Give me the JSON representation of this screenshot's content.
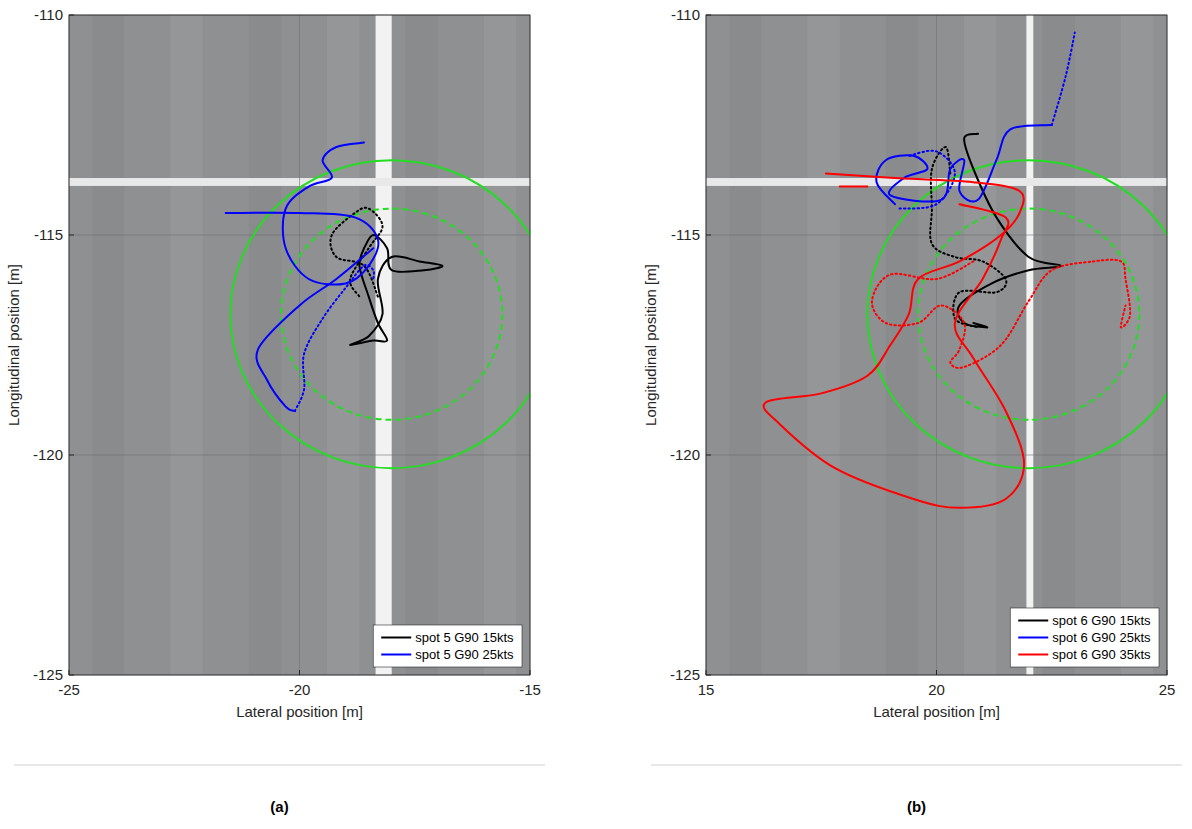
{
  "chart_data": [
    {
      "type": "line",
      "label": "(a)",
      "x_label": "Lateral position [m]",
      "y_label": "Longitudinal position [m]",
      "xlim": [
        -25,
        -15
      ],
      "ylim": [
        -125,
        -110
      ],
      "xticks": [
        -25,
        -20,
        -15
      ],
      "yticks": [
        -125,
        -120,
        -115,
        -110
      ],
      "grid": true,
      "legend": "lower right",
      "circles": [
        {
          "center": [
            -18,
            -116.8
          ],
          "radius": 3.5,
          "color": "#22dd22",
          "line_style": "solid"
        },
        {
          "center": [
            -18,
            -116.8
          ],
          "radius": 2.4,
          "color": "#22dd22",
          "line_style": "dashed"
        }
      ],
      "series": [
        {
          "name": "spot 5 G90 15kts",
          "color": "#000000",
          "segments": [
            {
              "line_style": "solid",
              "x": [
                -18.6,
                -18.4,
                -18.1,
                -18.0,
                -17.3,
                -16.9,
                -17.4,
                -18.0,
                -18.3,
                -18.2,
                -18.5,
                -18.9,
                -18.4,
                -18.1,
                -18.3,
                -18.5,
                -18.7,
                -18.6
              ],
              "y": [
                -115.3,
                -115.0,
                -115.3,
                -115.8,
                -115.8,
                -115.7,
                -115.6,
                -115.5,
                -116.0,
                -116.8,
                -117.3,
                -117.5,
                -117.4,
                -117.4,
                -117.0,
                -116.4,
                -115.7,
                -115.3
              ]
            },
            {
              "line_style": "dotted",
              "x": [
                -18.3,
                -18.6,
                -19.2,
                -19.3,
                -18.8,
                -18.5,
                -18.2,
                -18.5,
                -18.9,
                -18.7
              ],
              "y": [
                -116.4,
                -115.7,
                -115.5,
                -115.0,
                -114.5,
                -114.4,
                -114.8,
                -115.3,
                -116.0,
                -116.4
              ]
            }
          ]
        },
        {
          "name": "spot 5 G90 25kts",
          "color": "#0000ff",
          "segments": [
            {
              "line_style": "solid",
              "x": [
                -18.6,
                -19.2,
                -19.5,
                -19.3,
                -19.8,
                -20.3,
                -20.3,
                -19.8,
                -19.0,
                -18.5,
                -18.3,
                -18.8,
                -20.0,
                -21.6
              ],
              "y": [
                -112.9,
                -113.0,
                -113.3,
                -113.7,
                -113.9,
                -114.4,
                -115.3,
                -116.0,
                -116.1,
                -115.7,
                -115.1,
                -114.6,
                -114.5,
                -114.5
              ]
            },
            {
              "line_style": "solid",
              "x": [
                -18.4,
                -19.2,
                -20.0,
                -20.9,
                -20.7,
                -20.3,
                -20.1
              ],
              "y": [
                -115.3,
                -116.0,
                -116.6,
                -117.6,
                -118.3,
                -118.9,
                -119.0
              ]
            },
            {
              "line_style": "dotted",
              "x": [
                -20.1,
                -19.9,
                -19.9,
                -19.5,
                -19.0,
                -18.6,
                -18.4,
                -18.4
              ],
              "y": [
                -119.0,
                -118.5,
                -117.7,
                -116.9,
                -116.2,
                -115.7,
                -115.8,
                -116.0
              ]
            }
          ]
        }
      ]
    },
    {
      "type": "line",
      "label": "(b)",
      "x_label": "Lateral position [m]",
      "y_label": "Longitudinal position [m]",
      "xlim": [
        15,
        25
      ],
      "ylim": [
        -125,
        -110
      ],
      "xticks": [
        15,
        20,
        25
      ],
      "yticks": [
        -125,
        -120,
        -115,
        -110
      ],
      "grid": true,
      "legend": "lower right",
      "circles": [
        {
          "center": [
            22,
            -116.8
          ],
          "radius": 3.5,
          "color": "#22dd22",
          "line_style": "solid"
        },
        {
          "center": [
            22,
            -116.8
          ],
          "radius": 2.4,
          "color": "#22dd22",
          "line_style": "dashed"
        }
      ],
      "series": [
        {
          "name": "spot 6 G90 15kts",
          "color": "#000000",
          "segments": [
            {
              "line_style": "solid",
              "x": [
                20.9,
                20.6,
                20.8,
                21.3,
                22.0,
                22.7,
                22.0,
                21.2,
                20.5,
                20.6,
                21.1,
                20.8
              ],
              "y": [
                -112.7,
                -112.8,
                -113.5,
                -114.6,
                -115.5,
                -115.7,
                -115.8,
                -116.1,
                -116.6,
                -117.0,
                -117.1,
                -117.0
              ]
            },
            {
              "line_style": "dotted",
              "x": [
                20.3,
                20.2,
                19.9,
                19.9,
                19.9,
                20.4,
                21.0,
                21.5,
                21.3,
                20.5,
                20.4,
                20.9
              ],
              "y": [
                -113.6,
                -113.0,
                -113.5,
                -114.4,
                -115.2,
                -115.5,
                -115.6,
                -116.0,
                -116.3,
                -116.3,
                -116.9,
                -117.1
              ]
            }
          ]
        },
        {
          "name": "spot 6 G90 25kts",
          "color": "#0000ff",
          "segments": [
            {
              "line_style": "solid",
              "x": [
                19.1,
                18.7,
                18.9,
                19.5,
                19.8,
                19.3,
                19.0,
                20.1,
                20.3,
                20.6,
                20.5,
                20.9,
                21.3,
                21.6,
                22.5
              ],
              "y": [
                -114.3,
                -113.8,
                -113.3,
                -113.2,
                -113.5,
                -113.7,
                -114.1,
                -114.2,
                -113.5,
                -113.3,
                -114.0,
                -114.2,
                -113.3,
                -112.6,
                -112.5
              ]
            },
            {
              "line_style": "dotted",
              "x": [
                19.2,
                20.0,
                20.4,
                20.0,
                19.4
              ],
              "y": [
                -114.4,
                -114.3,
                -113.6,
                -113.1,
                -113.2
              ]
            },
            {
              "line_style": "dotted",
              "x": [
                22.5,
                22.8,
                23.0
              ],
              "y": [
                -112.5,
                -111.4,
                -110.4
              ]
            }
          ]
        },
        {
          "name": "spot 6 G90 35kts",
          "color": "#ff0000",
          "segments": [
            {
              "line_style": "solid",
              "x": [
                17.6,
                19.0,
                20.8,
                21.8,
                21.8,
                21.4,
                20.5,
                19.6,
                19.4,
                19.0,
                18.5,
                17.5,
                16.3,
                16.6,
                17.8,
                19.5,
                20.5,
                21.5,
                21.9,
                21.5,
                20.8,
                20.4,
                21.0,
                21.4,
                21.5,
                20.5
              ],
              "y": [
                -113.6,
                -113.7,
                -113.8,
                -114.0,
                -114.5,
                -115.0,
                -115.6,
                -116.0,
                -116.8,
                -117.5,
                -118.2,
                -118.6,
                -118.8,
                -119.3,
                -120.3,
                -121.0,
                -121.2,
                -121.0,
                -120.2,
                -119.0,
                -117.8,
                -117.0,
                -116.0,
                -115.1,
                -114.6,
                -114.3
              ]
            },
            {
              "line_style": "solid",
              "x": [
                17.9,
                18.5
              ],
              "y": [
                -113.9,
                -113.9
              ]
            },
            {
              "line_style": "dotted",
              "x": [
                20.8,
                20.0,
                19.0,
                18.6,
                18.9,
                19.6,
                20.1,
                20.6,
                20.5,
                20.3,
                20.6,
                21.4,
                22.0,
                22.5,
                23.4,
                24.0,
                24.1,
                24.2,
                24.0,
                24.1
              ],
              "y": [
                -115.6,
                -116.0,
                -115.9,
                -116.5,
                -117.0,
                -117.0,
                -116.6,
                -117.0,
                -117.6,
                -117.9,
                -118.0,
                -117.5,
                -116.5,
                -115.8,
                -115.6,
                -115.6,
                -116.0,
                -116.8,
                -117.1,
                -116.6
              ]
            }
          ]
        }
      ]
    }
  ]
}
